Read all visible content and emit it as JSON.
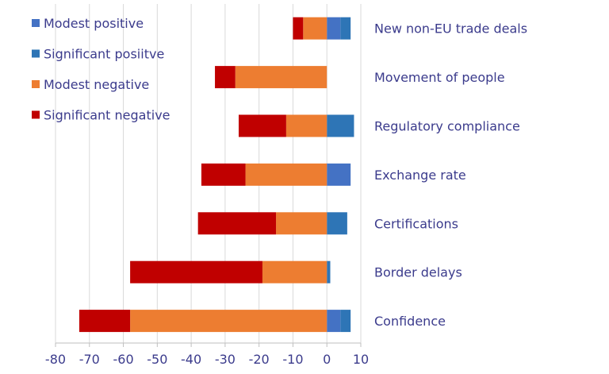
{
  "chart_data": {
    "type": "bar",
    "orientation": "horizontal",
    "stacked": true,
    "title": "",
    "xlabel": "",
    "ylabel": "",
    "xlim": [
      -80,
      10
    ],
    "x_ticks": [
      -80,
      -70,
      -60,
      -50,
      -40,
      -30,
      -20,
      -10,
      0,
      10
    ],
    "grid": true,
    "legend_position": "top-left",
    "categories": [
      "New non-EU trade deals",
      "Movement of people",
      "Regulatory compliance",
      "Exchange rate",
      "Certifications",
      "Border delays",
      "Confidence"
    ],
    "series": [
      {
        "name": "Modest positive",
        "color": "#4472c4",
        "direction": "positive",
        "values": [
          4,
          0,
          0,
          7,
          0,
          0,
          4
        ]
      },
      {
        "name": "Significant posiitve",
        "color": "#2e75b6",
        "direction": "positive",
        "values": [
          3,
          0,
          8,
          0,
          6,
          1,
          3
        ]
      },
      {
        "name": "Modest negative",
        "color": "#ed7d31",
        "direction": "negative",
        "values": [
          -7,
          -27,
          -12,
          -24,
          -15,
          -19,
          -58
        ]
      },
      {
        "name": "Significant negative",
        "color": "#c00000",
        "direction": "negative",
        "values": [
          -3,
          -6,
          -14,
          -13,
          -23,
          -39,
          -15
        ]
      }
    ]
  }
}
